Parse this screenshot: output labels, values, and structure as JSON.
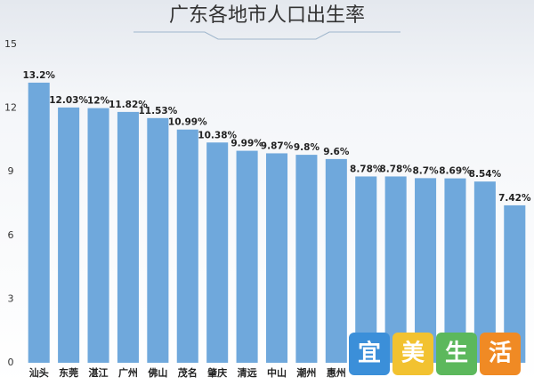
{
  "chart_data": {
    "type": "bar",
    "title": "广东各地市人口出生率",
    "categories": [
      "汕头",
      "东莞",
      "湛江",
      "广州",
      "佛山",
      "茂名",
      "肇庆",
      "清远",
      "中山",
      "潮州",
      "惠州",
      null,
      null,
      null,
      null,
      null,
      null
    ],
    "values": [
      13.2,
      12.03,
      12,
      11.82,
      11.53,
      10.99,
      10.38,
      9.99,
      9.87,
      9.8,
      9.6,
      8.78,
      8.78,
      8.7,
      8.69,
      8.54,
      7.42
    ],
    "value_labels": [
      "13.2%",
      "12.03%",
      "12%",
      "11.82%",
      "11.53%",
      "10.99%",
      "10.38%",
      "9.99%",
      "9.87%",
      "9.8%",
      "9.6%",
      "8.78%",
      "8.78%",
      "8.7%",
      "8.69%",
      "8.54%",
      "7.42%"
    ],
    "color": "#6fa8dc",
    "ylim": [
      0,
      15
    ],
    "yticks": [
      0,
      3,
      6,
      9,
      12,
      15
    ],
    "grid": false,
    "watermark": [
      "宜",
      "美",
      "生",
      "活"
    ]
  }
}
